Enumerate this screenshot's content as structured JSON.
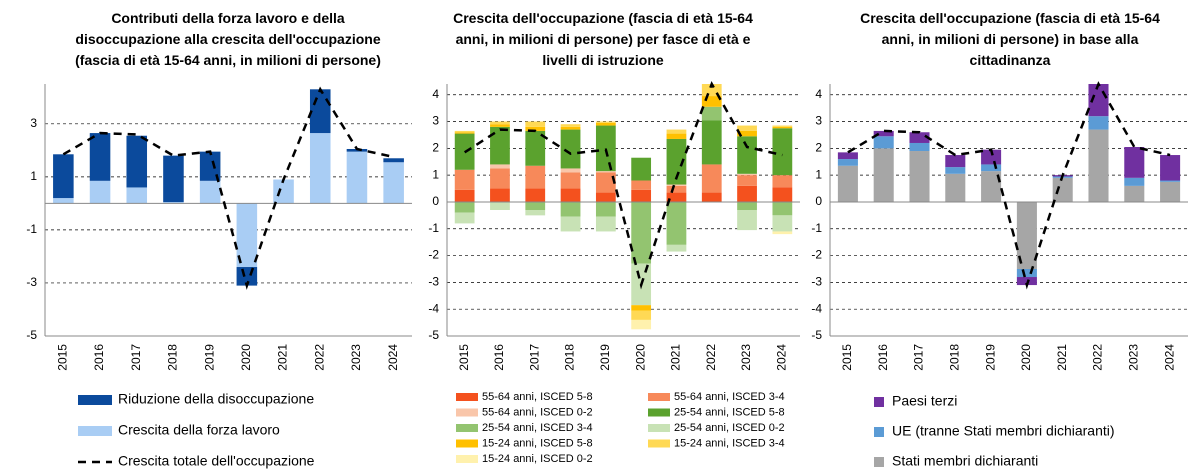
{
  "chart_data": [
    {
      "type": "bar",
      "stacked": true,
      "title": "Contributi della forza lavoro e della disoccupazione alla crescita dell'occupazione (fascia di età 15-64 anni, in milioni di persone)",
      "categories": [
        "2015",
        "2016",
        "2017",
        "2018",
        "2019",
        "2020",
        "2021",
        "2022",
        "2023",
        "2024"
      ],
      "series": [
        {
          "name": "Crescita della forza lavoro",
          "color": "#a9cdf4",
          "values": [
            0.2,
            0.85,
            0.6,
            0.05,
            0.85,
            -2.4,
            0.9,
            2.65,
            1.95,
            1.55
          ]
        },
        {
          "name": "Riduzione della disoccupazione",
          "color": "#0b4a9c",
          "values": [
            1.65,
            1.8,
            1.95,
            1.75,
            1.1,
            -0.7,
            0,
            1.65,
            0.1,
            0.15
          ]
        }
      ],
      "line": {
        "name": "Crescita totale dell'occupazione",
        "color": "#000000",
        "values": [
          1.85,
          2.65,
          2.6,
          1.8,
          1.95,
          -3.1,
          0.9,
          4.3,
          2.05,
          1.75
        ]
      },
      "legend_reversed": true,
      "ylim": [
        -5,
        4.5
      ],
      "yticks": [
        -5,
        -3,
        -1,
        1,
        3
      ],
      "grid": true
    },
    {
      "type": "bar",
      "stacked": true,
      "title": "Crescita dell'occupazione (fascia di età 15-64 anni, in milioni di persone) per fasce di età e livelli di istruzione",
      "categories": [
        "2015",
        "2016",
        "2017",
        "2018",
        "2019",
        "2020",
        "2021",
        "2022",
        "2023",
        "2024"
      ],
      "series": [
        {
          "name": "55-64 anni, ISCED 5-8",
          "color": "#f4511e",
          "values": [
            0.45,
            0.5,
            0.5,
            0.5,
            0.35,
            0.45,
            0.35,
            0.35,
            0.6,
            0.55
          ]
        },
        {
          "name": "55-64 anni, ISCED 3-4",
          "color": "#f7895a",
          "values": [
            0.75,
            0.75,
            0.85,
            0.6,
            0.75,
            0.35,
            0.25,
            1.05,
            0.4,
            0.45
          ]
        },
        {
          "name": "55-64 anni, ISCED 0-2",
          "color": "#f9c6aa",
          "values": [
            0,
            0.15,
            0,
            0.15,
            0.05,
            0,
            0.05,
            0,
            0.05,
            0
          ]
        },
        {
          "name": "25-54 anni, ISCED 5-8",
          "color": "#5ba22e",
          "values": [
            1.35,
            1.4,
            1.3,
            1.45,
            1.7,
            0.85,
            1.7,
            1.65,
            1.4,
            1.75
          ]
        },
        {
          "name": "25-54 anni, ISCED 3-4",
          "color": "#93c470",
          "values": [
            -0.4,
            0,
            -0.3,
            -0.55,
            -0.55,
            -2.3,
            -1.6,
            0.5,
            -0.3,
            -0.5
          ]
        },
        {
          "name": "25-54 anni, ISCED 0-2",
          "color": "#c8e2b5",
          "values": [
            -0.4,
            -0.3,
            -0.2,
            -0.55,
            -0.55,
            -1.55,
            -0.25,
            0,
            -0.75,
            -0.6
          ]
        },
        {
          "name": "15-24 anni, ISCED 5-8",
          "color": "#ffc000",
          "values": [
            0.05,
            0.1,
            0.15,
            0.1,
            0.1,
            -0.2,
            0.2,
            0.4,
            0.2,
            0.05
          ]
        },
        {
          "name": "15-24 anni, ISCED 3-4",
          "color": "#ffd955",
          "values": [
            0.05,
            0.1,
            0.2,
            0.1,
            0.05,
            -0.35,
            0.15,
            0.45,
            0.2,
            0.05
          ]
        },
        {
          "name": "15-24 anni, ISCED 0-2",
          "color": "#fff1ad",
          "values": [
            0,
            0,
            0,
            0,
            0,
            -0.35,
            0,
            0,
            0,
            -0.1
          ]
        }
      ],
      "line": {
        "color": "#000000",
        "values": [
          1.85,
          2.7,
          2.65,
          1.8,
          1.95,
          -3.1,
          0.9,
          4.4,
          2.05,
          1.75
        ]
      },
      "legend_columns": 2,
      "ylim": [
        -5,
        4.4
      ],
      "yticks": [
        -5,
        -4,
        -3,
        -2,
        -1,
        0,
        1,
        2,
        3,
        4
      ],
      "grid": true
    },
    {
      "type": "bar",
      "stacked": true,
      "title": "Crescita dell'occupazione (fascia di età 15-64 anni, in milioni di persone) in base alla cittadinanza",
      "categories": [
        "2015",
        "2016",
        "2017",
        "2018",
        "2019",
        "2020",
        "2021",
        "2022",
        "2023",
        "2024"
      ],
      "series": [
        {
          "name": "Stati membri dichiaranti",
          "color": "#a6a6a6",
          "values": [
            1.35,
            2.0,
            1.9,
            1.05,
            1.15,
            -2.5,
            0.9,
            2.7,
            0.6,
            0.75
          ]
        },
        {
          "name": "UE (tranne Stati membri dichiaranti)",
          "color": "#5b9bd5",
          "values": [
            0.25,
            0.45,
            0.3,
            0.25,
            0.25,
            -0.3,
            0.05,
            0.5,
            0.3,
            0.05
          ]
        },
        {
          "name": "Paesi terzi",
          "color": "#7030a0",
          "values": [
            0.25,
            0.2,
            0.4,
            0.45,
            0.55,
            -0.3,
            0.05,
            1.2,
            1.15,
            0.95
          ]
        }
      ],
      "line": {
        "color": "#000000",
        "values": [
          1.85,
          2.65,
          2.6,
          1.75,
          1.95,
          -3.1,
          1.0,
          4.4,
          2.05,
          1.75
        ]
      },
      "legend_reversed": true,
      "ylim": [
        -5,
        4.4
      ],
      "yticks": [
        -5,
        -4,
        -3,
        -2,
        -1,
        0,
        1,
        2,
        3,
        4
      ],
      "grid": true
    }
  ]
}
